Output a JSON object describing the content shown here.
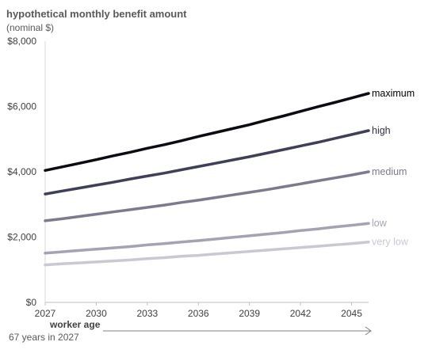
{
  "chart_data": {
    "type": "line",
    "title": "hypothetical monthly benefit amount",
    "subtitle": "(nominal $)",
    "x": [
      2027,
      2028,
      2029,
      2030,
      2031,
      2032,
      2033,
      2034,
      2035,
      2036,
      2037,
      2038,
      2039,
      2040,
      2041,
      2042,
      2043,
      2044,
      2045,
      2046
    ],
    "x_ticks": [
      "2027",
      "2030",
      "2033",
      "2036",
      "2039",
      "2042",
      "2045"
    ],
    "x_tick_values": [
      2027,
      2030,
      2033,
      2036,
      2039,
      2042,
      2045
    ],
    "y_ticks": [
      "$0",
      "$2,000",
      "$4,000",
      "$6,000",
      "$8,000"
    ],
    "y_tick_values": [
      0,
      2000,
      4000,
      6000,
      8000
    ],
    "ylim": [
      0,
      8000
    ],
    "xlim": [
      2027,
      2046
    ],
    "grid": false,
    "series": [
      {
        "name": "maximum",
        "color": "#0b0b12",
        "values": [
          4040,
          4150,
          4260,
          4370,
          4490,
          4600,
          4720,
          4830,
          4950,
          5080,
          5200,
          5320,
          5440,
          5580,
          5710,
          5850,
          5990,
          6120,
          6260,
          6400
        ]
      },
      {
        "name": "high",
        "color": "#3f3f5a",
        "values": [
          3320,
          3410,
          3500,
          3590,
          3680,
          3780,
          3870,
          3960,
          4060,
          4160,
          4260,
          4360,
          4460,
          4570,
          4680,
          4790,
          4900,
          5020,
          5140,
          5260
        ]
      },
      {
        "name": "medium",
        "color": "#7b7b8f",
        "values": [
          2500,
          2560,
          2630,
          2700,
          2770,
          2840,
          2910,
          2980,
          3060,
          3130,
          3210,
          3290,
          3370,
          3450,
          3540,
          3630,
          3720,
          3810,
          3900,
          4000
        ]
      },
      {
        "name": "low",
        "color": "#a3a3b3",
        "values": [
          1510,
          1550,
          1590,
          1630,
          1670,
          1710,
          1760,
          1800,
          1850,
          1890,
          1940,
          1990,
          2040,
          2090,
          2140,
          2200,
          2250,
          2310,
          2360,
          2420
        ]
      },
      {
        "name": "very low",
        "color": "#c9c9d1",
        "values": [
          1150,
          1180,
          1210,
          1240,
          1270,
          1300,
          1340,
          1370,
          1410,
          1440,
          1480,
          1520,
          1560,
          1600,
          1640,
          1680,
          1720,
          1760,
          1800,
          1850
        ]
      }
    ],
    "x_annotation": "worker age",
    "x_annotation_note": "67 years in 2027"
  }
}
